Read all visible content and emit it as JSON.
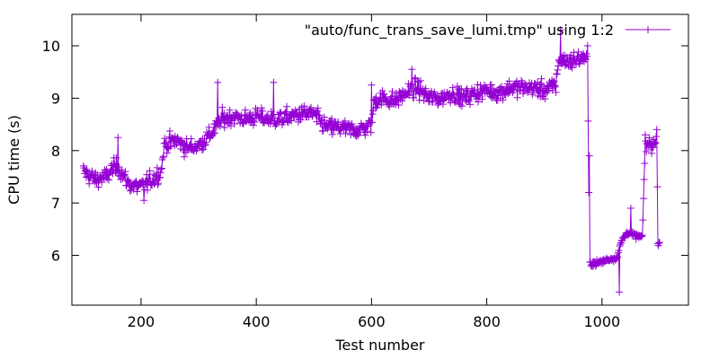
{
  "chart_data": {
    "type": "line",
    "title": "",
    "xlabel": "Test number",
    "ylabel": "CPU time (s)",
    "xlim": [
      80,
      1150
    ],
    "ylim": [
      5.05,
      10.6
    ],
    "xticks": [
      200,
      400,
      600,
      800,
      1000
    ],
    "xtick_labels": [
      "200",
      "400",
      "600",
      "800",
      "1000"
    ],
    "yticks": [
      6,
      7,
      8,
      9,
      10
    ],
    "ytick_labels": [
      "6",
      "7",
      "8",
      "9",
      "10"
    ],
    "grid": false,
    "legend_position": "top-right",
    "series": [
      {
        "name": "\"auto/func_trans_save_lumi.tmp\" using 1:2",
        "color": "#9400d3",
        "marker": "plus",
        "x_start": 100,
        "x_end": 1100,
        "trend_points": [
          [
            100,
            7.6
          ],
          [
            120,
            7.45
          ],
          [
            140,
            7.5
          ],
          [
            150,
            7.65
          ],
          [
            160,
            7.7
          ],
          [
            170,
            7.5
          ],
          [
            180,
            7.35
          ],
          [
            200,
            7.3
          ],
          [
            220,
            7.45
          ],
          [
            235,
            7.6
          ],
          [
            240,
            8.1
          ],
          [
            260,
            8.2
          ],
          [
            280,
            8.05
          ],
          [
            300,
            8.1
          ],
          [
            320,
            8.3
          ],
          [
            340,
            8.6
          ],
          [
            360,
            8.65
          ],
          [
            380,
            8.6
          ],
          [
            400,
            8.65
          ],
          [
            420,
            8.6
          ],
          [
            440,
            8.6
          ],
          [
            460,
            8.65
          ],
          [
            480,
            8.7
          ],
          [
            500,
            8.7
          ],
          [
            520,
            8.45
          ],
          [
            540,
            8.45
          ],
          [
            560,
            8.4
          ],
          [
            580,
            8.4
          ],
          [
            600,
            8.5
          ],
          [
            605,
            8.95
          ],
          [
            620,
            9.0
          ],
          [
            640,
            8.95
          ],
          [
            660,
            9.1
          ],
          [
            680,
            9.2
          ],
          [
            700,
            9.0
          ],
          [
            720,
            9.0
          ],
          [
            740,
            9.1
          ],
          [
            760,
            9.0
          ],
          [
            780,
            9.1
          ],
          [
            800,
            9.15
          ],
          [
            820,
            9.1
          ],
          [
            840,
            9.2
          ],
          [
            860,
            9.2
          ],
          [
            880,
            9.2
          ],
          [
            900,
            9.15
          ],
          [
            920,
            9.25
          ],
          [
            925,
            9.75
          ],
          [
            940,
            9.7
          ],
          [
            960,
            9.75
          ],
          [
            975,
            9.8
          ],
          [
            978,
            5.85
          ],
          [
            990,
            5.85
          ],
          [
            1000,
            5.88
          ],
          [
            1010,
            5.92
          ],
          [
            1025,
            5.95
          ],
          [
            1035,
            6.3
          ],
          [
            1045,
            6.45
          ],
          [
            1055,
            6.38
          ],
          [
            1070,
            6.35
          ],
          [
            1075,
            8.1
          ],
          [
            1085,
            8.12
          ],
          [
            1095,
            8.15
          ],
          [
            1097,
            6.3
          ],
          [
            1100,
            6.3
          ]
        ],
        "noise_sd": 0.16,
        "spikes": [
          [
            1030,
            5.3
          ],
          [
            928,
            10.3
          ],
          [
            978,
            7.9
          ],
          [
            975,
            10.0
          ],
          [
            333,
            9.3
          ],
          [
            600,
            9.25
          ],
          [
            670,
            9.55
          ],
          [
            430,
            9.3
          ],
          [
            1095,
            8.4
          ],
          [
            1075,
            8.3
          ],
          [
            1050,
            6.9
          ],
          [
            160,
            8.25
          ],
          [
            205,
            7.05
          ]
        ]
      }
    ]
  }
}
